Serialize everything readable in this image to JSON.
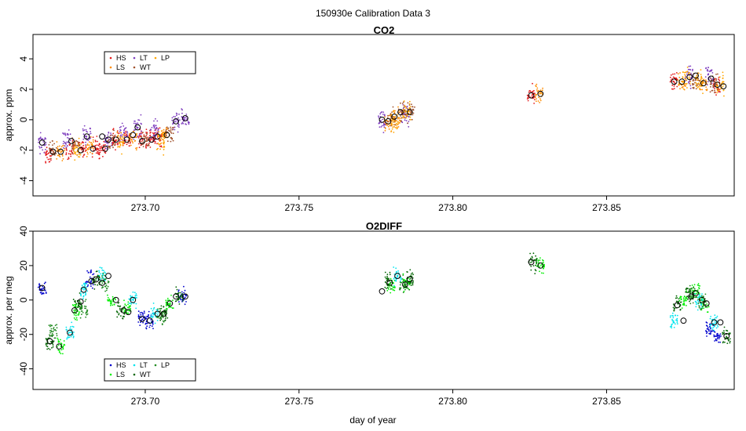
{
  "figure": {
    "title": "150930e   Calibration Data 3",
    "xlabel": "day of year"
  },
  "chart_data": [
    {
      "type": "scatter",
      "title": "CO2",
      "ylabel": "approx. ppm",
      "xlabel": "",
      "xlim": [
        273.6635,
        273.8915
      ],
      "ylim": [
        -5.0,
        5.6
      ],
      "xticks": [
        273.7,
        273.75,
        273.8,
        273.85
      ],
      "xtick_labels": [
        "273.70",
        "273.75",
        "273.80",
        "273.85"
      ],
      "yticks": [
        -4,
        -2,
        0,
        2,
        4
      ],
      "ytick_labels": [
        "-4",
        "-2",
        "0",
        "2",
        "4"
      ],
      "legend": {
        "placement": "top-left",
        "entries": [
          {
            "label": "HS",
            "color": "#e41a1c"
          },
          {
            "label": "LS",
            "color": "#ff8c00"
          },
          {
            "label": "LT",
            "color": "#7f3fbf"
          },
          {
            "label": "WT",
            "color": "#a0522d"
          },
          {
            "label": "LP",
            "color": "#ffa500"
          }
        ]
      },
      "series": [
        {
          "name": "HS",
          "color": "#e41a1c",
          "points": [
            [
              273.6685,
              -2.2
            ],
            [
              273.6755,
              -2.0
            ],
            [
              273.6795,
              -1.9
            ],
            [
              273.684,
              -1.8
            ],
            [
              273.686,
              -2.0
            ],
            [
              273.6905,
              -1.3
            ],
            [
              273.694,
              -1.3
            ],
            [
              273.699,
              -1.3
            ],
            [
              273.7015,
              -1.3
            ],
            [
              273.704,
              -1.1
            ],
            [
              273.8255,
              1.6
            ],
            [
              273.872,
              2.5
            ],
            [
              273.886,
              2.3
            ]
          ],
          "spread": 1.8
        },
        {
          "name": "LS",
          "color": "#ff8c00",
          "points": [
            [
              273.6725,
              -2.1
            ],
            [
              273.682,
              -1.8
            ],
            [
              273.696,
              -1.4
            ],
            [
              273.706,
              -1.0
            ],
            [
              273.779,
              -0.2
            ],
            [
              273.782,
              0.1
            ],
            [
              273.828,
              1.7
            ],
            [
              273.8745,
              2.5
            ],
            [
              273.8815,
              2.4
            ]
          ],
          "spread": 1.8
        },
        {
          "name": "LT",
          "color": "#7f3fbf",
          "points": [
            [
              273.6665,
              -1.5
            ],
            [
              273.6745,
              -1.4
            ],
            [
              273.681,
              -1.0
            ],
            [
              273.688,
              -1.3
            ],
            [
              273.693,
              -0.9
            ],
            [
              273.6975,
              -0.5
            ],
            [
              273.703,
              -0.7
            ],
            [
              273.71,
              -0.1
            ],
            [
              273.713,
              0.1
            ],
            [
              273.777,
              0.0
            ],
            [
              273.7845,
              0.3
            ],
            [
              273.877,
              2.8
            ],
            [
              273.8835,
              3.0
            ]
          ],
          "spread": 2.0
        },
        {
          "name": "WT",
          "color": "#a0522d",
          "points": [
            [
              273.67,
              -2.0
            ],
            [
              273.6775,
              -1.7
            ],
            [
              273.689,
              -1.4
            ],
            [
              273.7,
              -1.3
            ],
            [
              273.708,
              -0.9
            ],
            [
              273.78,
              0.1
            ],
            [
              273.7835,
              0.5
            ],
            [
              273.7865,
              0.5
            ],
            [
              273.879,
              2.5
            ],
            [
              273.885,
              2.3
            ]
          ],
          "spread": 1.8
        },
        {
          "name": "LP",
          "color": "#ffa500",
          "points": [
            [
              273.678,
              -2.0
            ],
            [
              273.692,
              -1.5
            ],
            [
              273.705,
              -1.4
            ],
            [
              273.781,
              -0.1
            ],
            [
              273.785,
              0.5
            ],
            [
              273.876,
              2.8
            ],
            [
              273.88,
              2.6
            ],
            [
              273.887,
              2.3
            ]
          ],
          "spread": 2.0
        }
      ],
      "means": [
        [
          273.6665,
          -1.5
        ],
        [
          273.67,
          -2.1
        ],
        [
          273.6725,
          -2.1
        ],
        [
          273.676,
          -1.4
        ],
        [
          273.679,
          -2.0
        ],
        [
          273.681,
          -1.1
        ],
        [
          273.683,
          -1.9
        ],
        [
          273.686,
          -1.1
        ],
        [
          273.687,
          -1.9
        ],
        [
          273.688,
          -1.3
        ],
        [
          273.6905,
          -1.3
        ],
        [
          273.694,
          -1.3
        ],
        [
          273.696,
          -1.0
        ],
        [
          273.6975,
          -0.5
        ],
        [
          273.699,
          -1.4
        ],
        [
          273.702,
          -1.3
        ],
        [
          273.704,
          -1.1
        ],
        [
          273.707,
          -1.0
        ],
        [
          273.71,
          -0.1
        ],
        [
          273.713,
          0.1
        ],
        [
          273.777,
          0.0
        ],
        [
          273.779,
          -0.1
        ],
        [
          273.781,
          0.2
        ],
        [
          273.783,
          0.5
        ],
        [
          273.786,
          0.5
        ],
        [
          273.8255,
          1.6
        ],
        [
          273.8285,
          1.7
        ],
        [
          273.872,
          2.5
        ],
        [
          273.8745,
          2.5
        ],
        [
          273.877,
          2.8
        ],
        [
          273.879,
          2.9
        ],
        [
          273.8815,
          2.4
        ],
        [
          273.884,
          2.7
        ],
        [
          273.886,
          2.3
        ],
        [
          273.888,
          2.2
        ]
      ]
    },
    {
      "type": "scatter",
      "title": "O2DIFF",
      "ylabel": "approx. per meg",
      "xlabel": "day of year",
      "xlim": [
        273.6635,
        273.8915
      ],
      "ylim": [
        -52,
        40
      ],
      "xticks": [
        273.7,
        273.75,
        273.8,
        273.85
      ],
      "xtick_labels": [
        "273.70",
        "273.75",
        "273.80",
        "273.85"
      ],
      "yticks": [
        -40,
        -20,
        0,
        20,
        40
      ],
      "ytick_labels": [
        "-40",
        "-20",
        "0",
        "20",
        "40"
      ],
      "legend": {
        "placement": "bottom-left",
        "entries": [
          {
            "label": "HS",
            "color": "#0000cd"
          },
          {
            "label": "LS",
            "color": "#00ee00"
          },
          {
            "label": "LT",
            "color": "#00e5ee"
          },
          {
            "label": "WT",
            "color": "#006400"
          },
          {
            "label": "LP",
            "color": "#228b22"
          }
        ]
      },
      "series": [
        {
          "name": "HS",
          "color": "#0000cd",
          "points": [
            [
              273.6665,
              7
            ],
            [
              273.682,
              12
            ],
            [
              273.699,
              -11
            ],
            [
              273.7015,
              -12
            ],
            [
              273.712,
              2
            ],
            [
              273.8835,
              -17
            ],
            [
              273.886,
              -21
            ]
          ],
          "spread": 14
        },
        {
          "name": "LS",
          "color": "#00ee00",
          "points": [
            [
              273.6725,
              -27
            ],
            [
              273.6775,
              -6
            ],
            [
              273.689,
              -1
            ],
            [
              273.694,
              -5
            ],
            [
              273.708,
              -2
            ],
            [
              273.78,
              8
            ],
            [
              273.785,
              10
            ],
            [
              273.8285,
              20
            ],
            [
              273.875,
              0
            ],
            [
              273.879,
              6
            ],
            [
              273.882,
              -2
            ]
          ],
          "spread": 14
        },
        {
          "name": "LT",
          "color": "#00e5ee",
          "points": [
            [
              273.6755,
              -19
            ],
            [
              273.68,
              6
            ],
            [
              273.686,
              14
            ],
            [
              273.696,
              0
            ],
            [
              273.703,
              -8
            ],
            [
              273.782,
              14
            ],
            [
              273.872,
              -12
            ],
            [
              273.88,
              -1
            ],
            [
              273.885,
              -13
            ]
          ],
          "spread": 14
        },
        {
          "name": "WT",
          "color": "#006400",
          "points": [
            [
              273.669,
              -24
            ],
            [
              273.678,
              -2
            ],
            [
              273.684,
              12
            ],
            [
              273.692,
              -6
            ],
            [
              273.706,
              -8
            ],
            [
              273.711,
              2
            ],
            [
              273.779,
              11
            ],
            [
              273.786,
              12
            ],
            [
              273.826,
              22
            ],
            [
              273.873,
              -3
            ],
            [
              273.877,
              4
            ],
            [
              273.889,
              -22
            ]
          ],
          "spread": 14
        },
        {
          "name": "LP",
          "color": "#228b22",
          "points": [
            [
              273.67,
              -18
            ],
            [
              273.68,
              -6
            ],
            [
              273.687,
              10
            ],
            [
              273.705,
              -9
            ],
            [
              273.784,
              9
            ],
            [
              273.878,
              3
            ],
            [
              273.881,
              -2
            ]
          ],
          "spread": 14
        }
      ],
      "means": [
        [
          273.6665,
          7
        ],
        [
          273.669,
          -24
        ],
        [
          273.672,
          -27
        ],
        [
          273.6755,
          -19
        ],
        [
          273.677,
          -6
        ],
        [
          273.679,
          -1
        ],
        [
          273.68,
          6
        ],
        [
          273.6825,
          11
        ],
        [
          273.684,
          12
        ],
        [
          273.686,
          10
        ],
        [
          273.688,
          14
        ],
        [
          273.6905,
          0
        ],
        [
          273.693,
          -6
        ],
        [
          273.6945,
          -7
        ],
        [
          273.696,
          0
        ],
        [
          273.699,
          -11
        ],
        [
          273.7015,
          -12
        ],
        [
          273.704,
          -8
        ],
        [
          273.706,
          -8
        ],
        [
          273.708,
          -2
        ],
        [
          273.71,
          2
        ],
        [
          273.713,
          2
        ],
        [
          273.777,
          5
        ],
        [
          273.7795,
          10
        ],
        [
          273.782,
          14
        ],
        [
          273.7845,
          9
        ],
        [
          273.786,
          12
        ],
        [
          273.8255,
          22
        ],
        [
          273.8285,
          20
        ],
        [
          273.873,
          -3
        ],
        [
          273.875,
          -12
        ],
        [
          273.8775,
          2
        ],
        [
          273.879,
          4
        ],
        [
          273.881,
          0
        ],
        [
          273.8825,
          -2
        ],
        [
          273.885,
          -13
        ],
        [
          273.887,
          -13
        ],
        [
          273.889,
          -21
        ]
      ]
    }
  ]
}
